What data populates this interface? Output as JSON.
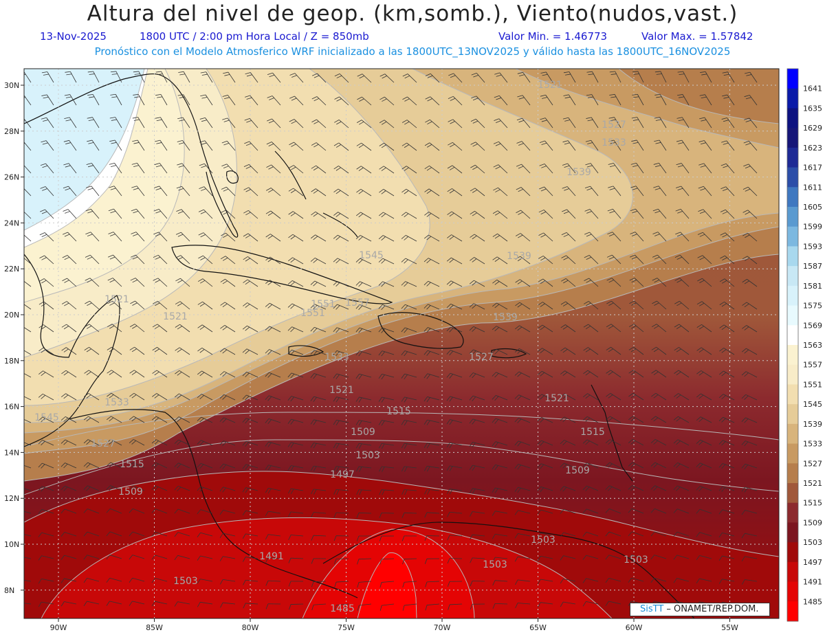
{
  "header": {
    "title": "Altura del nivel de geop. (km,somb.), Viento(nudos,vast.)",
    "date": "13-Nov-2025",
    "time": "1800 UTC / 2:00 pm Hora Local / Z = 850mb",
    "min_value": "Valor Min. = 1.46773",
    "max_value": "Valor Max. = 1.57842",
    "forecast_line": "Pronóstico con el Modelo Atmosferico WRF inicializado a las 1800UTC_13NOV2025 y válido hasta las  1800UTC_16NOV2025"
  },
  "map": {
    "lat_labels": [
      "30N",
      "28N",
      "26N",
      "24N",
      "22N",
      "20N",
      "18N",
      "16N",
      "14N",
      "12N",
      "10N",
      "8N"
    ],
    "lon_labels": [
      "90W",
      "85W",
      "80W",
      "75W",
      "70W",
      "65W",
      "60W",
      "55W"
    ],
    "lon_values": [
      -90,
      -85,
      -80,
      -75,
      -70,
      -65,
      -60,
      -55
    ],
    "lat_values": [
      30,
      28,
      26,
      24,
      22,
      20,
      18,
      16,
      14,
      12,
      10,
      8
    ],
    "contour_labels": [
      "1521",
      "1527",
      "1533",
      "1539",
      "1545",
      "1539",
      "1551",
      "1539",
      "1533",
      "1527",
      "1521",
      "1521",
      "1515",
      "1509",
      "1503",
      "1497",
      "1491",
      "1485",
      "1503",
      "1509",
      "1515",
      "1521",
      "1527",
      "1533",
      "1545",
      "1551",
      "1557",
      "1509",
      "1515",
      "1503",
      "1503",
      "1503",
      "1521"
    ]
  },
  "colorbar": {
    "levels": [
      "1641",
      "1635",
      "1629",
      "1623",
      "1617",
      "1611",
      "1605",
      "1599",
      "1593",
      "1587",
      "1581",
      "1575",
      "1569",
      "1563",
      "1557",
      "1551",
      "1545",
      "1539",
      "1533",
      "1527",
      "1521",
      "1515",
      "1509",
      "1503",
      "1497",
      "1491",
      "1485"
    ],
    "colors": [
      "#0000ff",
      "#0a1aa8",
      "#0d1280",
      "#161678",
      "#1e2a95",
      "#2c4ea8",
      "#3f78c0",
      "#5a9ad0",
      "#7cb8e0",
      "#a8d8ee",
      "#c8e8f5",
      "#d8f2fb",
      "#e8fafe",
      "#ffffff",
      "#fbf2d0",
      "#f8ecc8",
      "#f2deb0",
      "#e6cc98",
      "#d8b47c",
      "#c89a62",
      "#b67e4c",
      "#a0583a",
      "#8c2a2e",
      "#7c1620",
      "#a00a0a",
      "#c80808",
      "#e40404",
      "#ff0000"
    ]
  },
  "credit": {
    "brand": "SisTT",
    "text": " – ONAMET/REP.DOM."
  }
}
